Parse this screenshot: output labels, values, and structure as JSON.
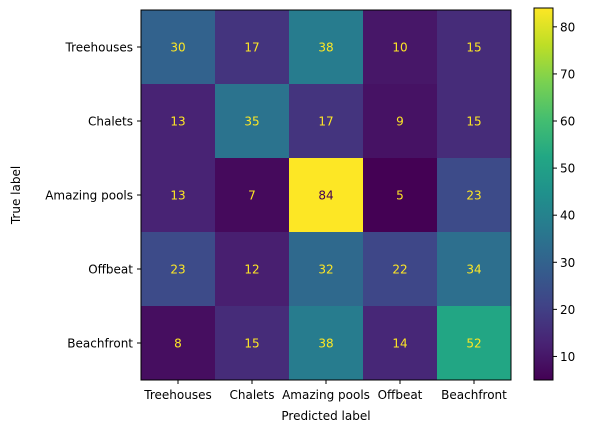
{
  "chart_data": {
    "type": "heatmap",
    "xlabel": "Predicted label",
    "ylabel": "True label",
    "x_categories": [
      "Treehouses",
      "Chalets",
      "Amazing pools",
      "Offbeat",
      "Beachfront"
    ],
    "y_categories": [
      "Treehouses",
      "Chalets",
      "Amazing pools",
      "Offbeat",
      "Beachfront"
    ],
    "values": [
      [
        30,
        17,
        38,
        10,
        15
      ],
      [
        13,
        35,
        17,
        9,
        15
      ],
      [
        13,
        7,
        84,
        5,
        23
      ],
      [
        23,
        12,
        32,
        22,
        34
      ],
      [
        8,
        15,
        38,
        14,
        52
      ]
    ],
    "colormap": "viridis",
    "color_range": [
      5,
      84
    ],
    "colorbar_ticks": [
      10,
      20,
      30,
      40,
      50,
      60,
      70,
      80
    ],
    "cell_text_color": "#fde725",
    "grid": false
  }
}
